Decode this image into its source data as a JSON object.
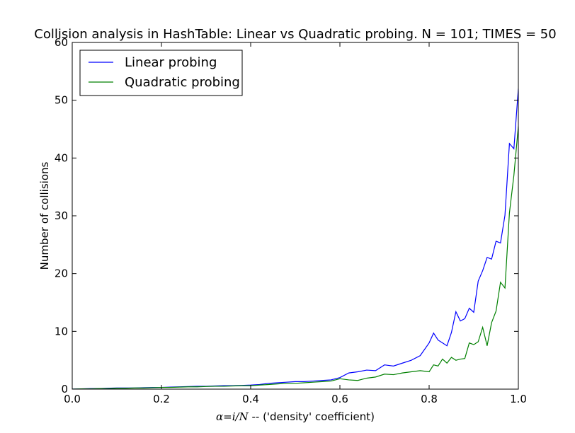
{
  "chart_data": {
    "type": "line",
    "title": "Collision analysis in HashTable: Linear vs Quadratic probing. N = 101; TIMES = 50",
    "xlabel_math": "α=i/N",
    "xlabel_rest": " -- ('density' coefficient)",
    "ylabel": "Number of collisions",
    "xlim": [
      0.0,
      1.0
    ],
    "ylim": [
      0,
      60
    ],
    "xticks": [
      "0.0",
      "0.2",
      "0.4",
      "0.6",
      "0.8",
      "1.0"
    ],
    "xtick_values": [
      0.0,
      0.2,
      0.4,
      0.6,
      0.8,
      1.0
    ],
    "yticks": [
      "0",
      "10",
      "20",
      "30",
      "40",
      "50",
      "60"
    ],
    "ytick_values": [
      0,
      10,
      20,
      30,
      40,
      50,
      60
    ],
    "grid": false,
    "legend_position": "upper-left",
    "x": [
      0.0,
      0.02,
      0.04,
      0.06,
      0.08,
      0.1,
      0.12,
      0.14,
      0.16,
      0.18,
      0.2,
      0.22,
      0.24,
      0.26,
      0.28,
      0.3,
      0.32,
      0.34,
      0.36,
      0.38,
      0.4,
      0.42,
      0.44,
      0.46,
      0.48,
      0.5,
      0.52,
      0.54,
      0.56,
      0.58,
      0.6,
      0.62,
      0.64,
      0.66,
      0.68,
      0.7,
      0.72,
      0.74,
      0.76,
      0.78,
      0.8,
      0.81,
      0.82,
      0.83,
      0.84,
      0.85,
      0.86,
      0.87,
      0.88,
      0.89,
      0.9,
      0.91,
      0.92,
      0.93,
      0.94,
      0.95,
      0.96,
      0.97,
      0.98,
      0.99,
      1.0
    ],
    "series": [
      {
        "name": "Linear probing",
        "color": "#0000ff",
        "values": [
          0.0,
          0.05,
          0.1,
          0.1,
          0.15,
          0.2,
          0.2,
          0.2,
          0.25,
          0.3,
          0.3,
          0.35,
          0.4,
          0.45,
          0.5,
          0.5,
          0.55,
          0.6,
          0.6,
          0.65,
          0.7,
          0.8,
          1.0,
          1.1,
          1.2,
          1.3,
          1.3,
          1.4,
          1.5,
          1.6,
          2.0,
          2.8,
          3.0,
          3.3,
          3.2,
          4.2,
          4.0,
          4.5,
          5.0,
          5.8,
          8.0,
          9.7,
          8.5,
          8.0,
          7.5,
          9.8,
          13.4,
          11.8,
          12.2,
          14.0,
          13.3,
          18.7,
          20.5,
          22.8,
          22.5,
          25.6,
          25.3,
          30.1,
          42.5,
          41.6,
          52.0
        ]
      },
      {
        "name": "Quadratic probing",
        "color": "#008000",
        "values": [
          0.0,
          0.05,
          0.05,
          0.1,
          0.1,
          0.15,
          0.15,
          0.2,
          0.2,
          0.25,
          0.3,
          0.3,
          0.35,
          0.4,
          0.4,
          0.45,
          0.5,
          0.5,
          0.55,
          0.6,
          0.6,
          0.7,
          0.8,
          0.9,
          1.0,
          1.0,
          1.1,
          1.2,
          1.3,
          1.4,
          1.8,
          1.6,
          1.5,
          1.9,
          2.1,
          2.6,
          2.5,
          2.8,
          3.0,
          3.2,
          3.0,
          4.2,
          4.0,
          5.2,
          4.5,
          5.5,
          5.0,
          5.2,
          5.3,
          8.0,
          7.7,
          8.2,
          10.7,
          7.5,
          11.5,
          13.5,
          18.5,
          17.5,
          30.5,
          37.0,
          45.5
        ]
      }
    ]
  }
}
